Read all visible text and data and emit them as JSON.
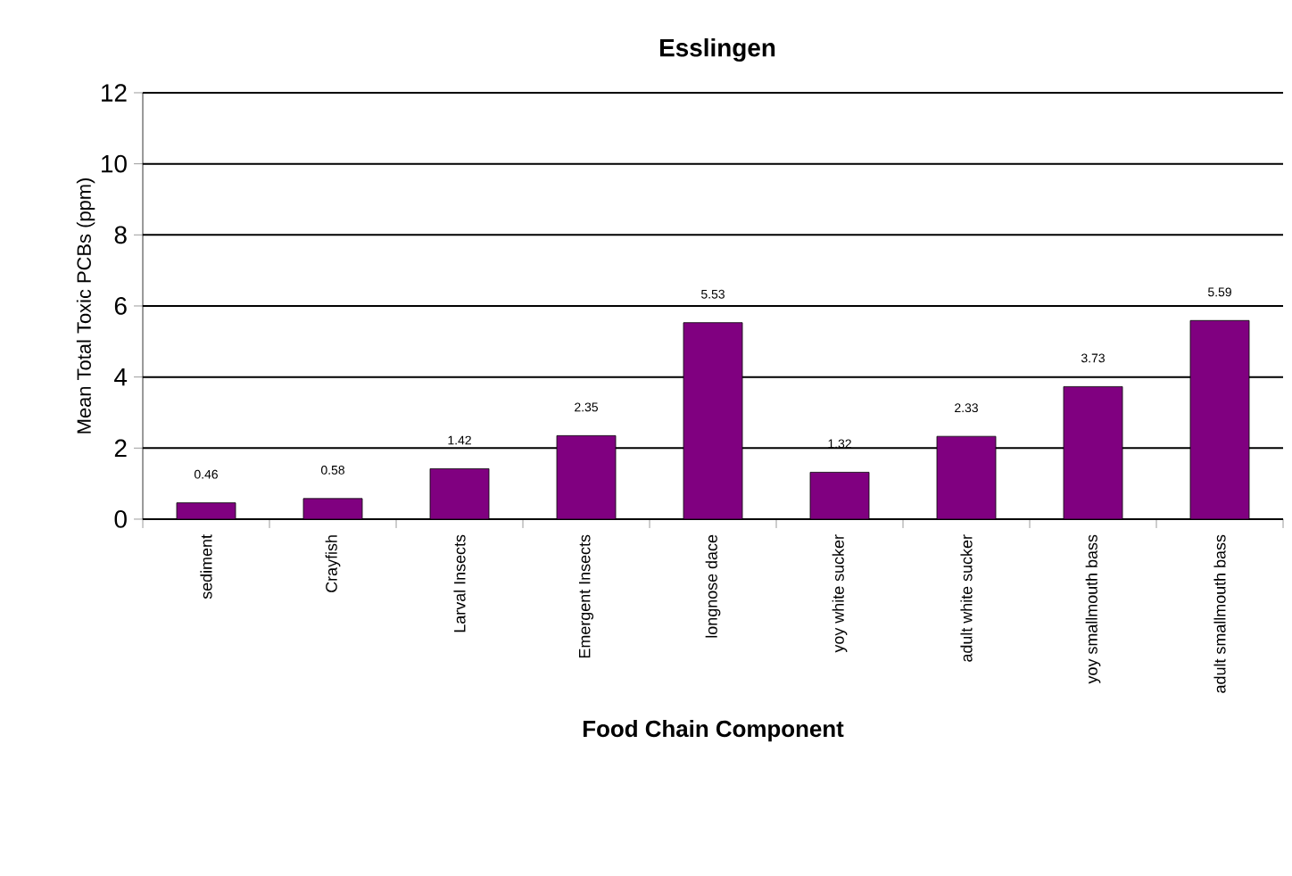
{
  "chart_data": {
    "type": "bar",
    "title": "Esslingen",
    "xlabel": "Food Chain Component",
    "ylabel": "Mean Total Toxic PCBs (ppm)",
    "categories": [
      "sediment",
      "Crayfish",
      "Larval Insects",
      "Emergent Insects",
      "longnose dace",
      "yoy white sucker",
      "adult white sucker",
      "yoy smallmouth bass",
      "adult smallmouth bass"
    ],
    "values": [
      0.46,
      0.58,
      1.42,
      2.35,
      5.53,
      1.32,
      2.33,
      3.73,
      5.59
    ],
    "color": "#800080",
    "ylim": [
      0,
      12
    ],
    "yticks": [
      0,
      2,
      4,
      6,
      8,
      10,
      12
    ],
    "grid": "y",
    "data_labels": true
  }
}
